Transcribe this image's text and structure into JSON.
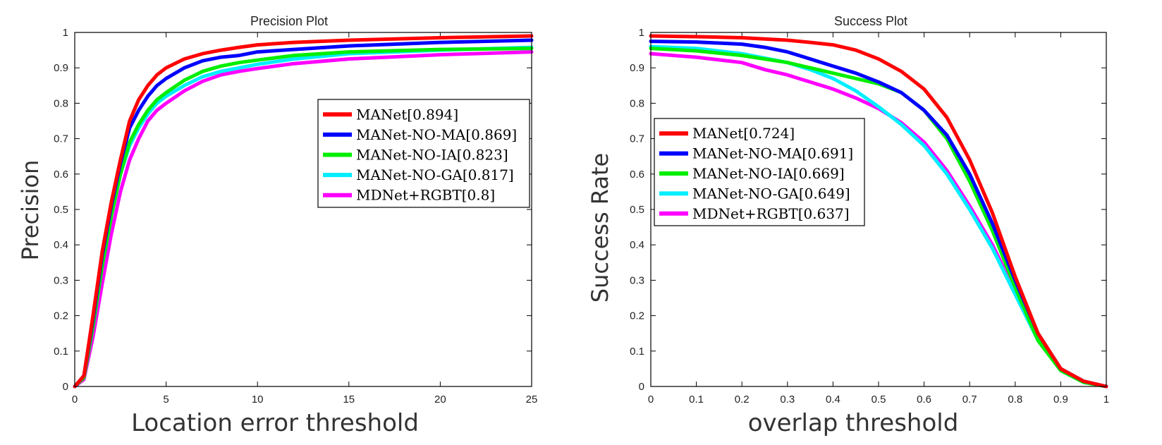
{
  "chart_data": [
    {
      "type": "line",
      "title": "Precision Plot",
      "xlabel": "Location error threshold",
      "ylabel": "Precision",
      "xlim": [
        0,
        25
      ],
      "ylim": [
        0,
        1
      ],
      "xticks": [
        0,
        5,
        10,
        15,
        20,
        25
      ],
      "xtick_labels": [
        "0",
        "5",
        "10",
        "15",
        "20",
        "25"
      ],
      "yticks": [
        0,
        0.1,
        0.2,
        0.3,
        0.4,
        0.5,
        0.6,
        0.7,
        0.8,
        0.9,
        1
      ],
      "ytick_labels": [
        "0",
        "0.1",
        "0.2",
        "0.3",
        "0.4",
        "0.5",
        "0.6",
        "0.7",
        "0.8",
        "0.9",
        "1"
      ],
      "legend_position": "upper-right",
      "grid": false,
      "series": [
        {
          "name": "MANet[0.894]",
          "color": "#ff0000",
          "x": [
            0,
            0.5,
            1,
            1.5,
            2,
            2.5,
            3,
            3.5,
            4,
            4.5,
            5,
            6,
            7,
            8,
            9,
            10,
            12,
            15,
            20,
            25
          ],
          "y": [
            0,
            0.03,
            0.2,
            0.38,
            0.52,
            0.64,
            0.75,
            0.81,
            0.85,
            0.88,
            0.9,
            0.925,
            0.94,
            0.95,
            0.958,
            0.965,
            0.972,
            0.978,
            0.985,
            0.99
          ]
        },
        {
          "name": "MANet-NO-MA[0.869]",
          "color": "#0000ff",
          "x": [
            0,
            0.5,
            1,
            1.5,
            2,
            2.5,
            3,
            3.5,
            4,
            4.5,
            5,
            6,
            7,
            8,
            9,
            10,
            12,
            15,
            20,
            25
          ],
          "y": [
            0,
            0.03,
            0.19,
            0.37,
            0.51,
            0.63,
            0.73,
            0.78,
            0.82,
            0.85,
            0.87,
            0.9,
            0.92,
            0.93,
            0.935,
            0.945,
            0.952,
            0.962,
            0.972,
            0.978
          ]
        },
        {
          "name": "MANet-NO-IA[0.823]",
          "color": "#00ee00",
          "x": [
            0,
            0.5,
            1,
            1.5,
            2,
            2.5,
            3,
            3.5,
            4,
            4.5,
            5,
            6,
            7,
            8,
            9,
            10,
            12,
            15,
            20,
            25
          ],
          "y": [
            0,
            0.025,
            0.17,
            0.34,
            0.48,
            0.6,
            0.69,
            0.74,
            0.78,
            0.81,
            0.83,
            0.865,
            0.89,
            0.905,
            0.915,
            0.922,
            0.935,
            0.945,
            0.952,
            0.955
          ]
        },
        {
          "name": "MANet-NO-GA[0.817]",
          "color": "#00eeff",
          "x": [
            0,
            0.5,
            1,
            1.5,
            2,
            2.5,
            3,
            3.5,
            4,
            4.5,
            5,
            6,
            7,
            8,
            9,
            10,
            12,
            15,
            20,
            25
          ],
          "y": [
            0,
            0.025,
            0.17,
            0.34,
            0.48,
            0.6,
            0.68,
            0.73,
            0.77,
            0.8,
            0.82,
            0.85,
            0.875,
            0.89,
            0.9,
            0.91,
            0.925,
            0.94,
            0.95,
            0.958
          ]
        },
        {
          "name": "MDNet+RGBT[0.8]",
          "color": "#ff00ff",
          "x": [
            0,
            0.5,
            1,
            1.5,
            2,
            2.5,
            3,
            3.5,
            4,
            4.5,
            5,
            6,
            7,
            8,
            9,
            10,
            12,
            15,
            20,
            25
          ],
          "y": [
            0,
            0.02,
            0.14,
            0.29,
            0.43,
            0.55,
            0.64,
            0.7,
            0.75,
            0.78,
            0.8,
            0.835,
            0.862,
            0.88,
            0.89,
            0.898,
            0.912,
            0.925,
            0.937,
            0.945
          ]
        }
      ]
    },
    {
      "type": "line",
      "title": "Success Plot",
      "xlabel": "overlap threshold",
      "ylabel": "Success Rate",
      "xlim": [
        0,
        1
      ],
      "ylim": [
        0,
        1
      ],
      "xticks": [
        0,
        0.1,
        0.2,
        0.3,
        0.4,
        0.5,
        0.6,
        0.7,
        0.8,
        0.9,
        1
      ],
      "xtick_labels": [
        "0",
        "0.1",
        "0.2",
        "0.3",
        "0.4",
        "0.5",
        "0.6",
        "0.7",
        "0.8",
        "0.9",
        "1"
      ],
      "yticks": [
        0,
        0.1,
        0.2,
        0.3,
        0.4,
        0.5,
        0.6,
        0.7,
        0.8,
        0.9,
        1
      ],
      "ytick_labels": [
        "0",
        "0.1",
        "0.2",
        "0.3",
        "0.4",
        "0.5",
        "0.6",
        "0.7",
        "0.8",
        "0.9",
        "1"
      ],
      "legend_position": "middle-left",
      "grid": false,
      "series": [
        {
          "name": "MANet[0.724]",
          "color": "#ff0000",
          "x": [
            0,
            0.1,
            0.2,
            0.3,
            0.35,
            0.4,
            0.45,
            0.5,
            0.55,
            0.6,
            0.65,
            0.7,
            0.75,
            0.8,
            0.85,
            0.9,
            0.95,
            1
          ],
          "y": [
            0.99,
            0.988,
            0.985,
            0.978,
            0.972,
            0.965,
            0.95,
            0.925,
            0.89,
            0.84,
            0.76,
            0.64,
            0.49,
            0.31,
            0.15,
            0.05,
            0.015,
            0
          ]
        },
        {
          "name": "MANet-NO-MA[0.691]",
          "color": "#0000ff",
          "x": [
            0,
            0.1,
            0.2,
            0.25,
            0.3,
            0.35,
            0.4,
            0.45,
            0.5,
            0.55,
            0.6,
            0.65,
            0.7,
            0.75,
            0.8,
            0.85,
            0.9,
            0.95,
            1
          ],
          "y": [
            0.975,
            0.973,
            0.967,
            0.958,
            0.945,
            0.925,
            0.905,
            0.885,
            0.86,
            0.83,
            0.78,
            0.71,
            0.6,
            0.46,
            0.3,
            0.15,
            0.05,
            0.015,
            0
          ]
        },
        {
          "name": "MANet-NO-IA[0.669]",
          "color": "#00ee00",
          "x": [
            0,
            0.1,
            0.2,
            0.3,
            0.35,
            0.4,
            0.45,
            0.5,
            0.55,
            0.6,
            0.65,
            0.7,
            0.75,
            0.8,
            0.85,
            0.9,
            0.95,
            1
          ],
          "y": [
            0.955,
            0.948,
            0.935,
            0.915,
            0.9,
            0.885,
            0.87,
            0.855,
            0.83,
            0.78,
            0.7,
            0.58,
            0.44,
            0.28,
            0.13,
            0.045,
            0.012,
            0
          ]
        },
        {
          "name": "MANet-NO-GA[0.649]",
          "color": "#00eeff",
          "x": [
            0,
            0.1,
            0.2,
            0.3,
            0.35,
            0.4,
            0.45,
            0.5,
            0.55,
            0.6,
            0.65,
            0.7,
            0.75,
            0.8,
            0.85,
            0.9,
            0.95,
            1
          ],
          "y": [
            0.96,
            0.955,
            0.94,
            0.915,
            0.895,
            0.87,
            0.835,
            0.79,
            0.74,
            0.68,
            0.6,
            0.5,
            0.39,
            0.26,
            0.13,
            0.045,
            0.012,
            0
          ]
        },
        {
          "name": "MDNet+RGBT[0.637]",
          "color": "#ff00ff",
          "x": [
            0,
            0.1,
            0.2,
            0.25,
            0.3,
            0.35,
            0.4,
            0.45,
            0.5,
            0.55,
            0.6,
            0.65,
            0.7,
            0.75,
            0.8,
            0.85,
            0.9,
            0.95,
            1
          ],
          "y": [
            0.94,
            0.93,
            0.915,
            0.895,
            0.88,
            0.86,
            0.84,
            0.815,
            0.785,
            0.745,
            0.69,
            0.61,
            0.51,
            0.4,
            0.27,
            0.14,
            0.05,
            0.013,
            0
          ]
        }
      ]
    }
  ]
}
